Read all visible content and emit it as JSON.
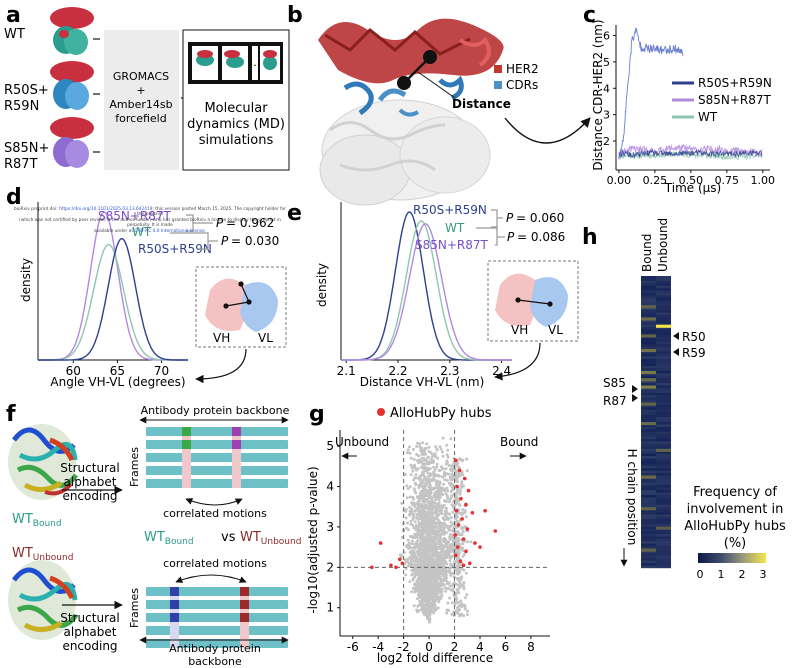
{
  "panel_labels": {
    "a": "a",
    "b": "b",
    "c": "c",
    "d": "d",
    "e": "e",
    "f": "f",
    "g": "g",
    "h": "h"
  },
  "panel_a": {
    "variants": [
      "WT",
      "R50S+",
      "R59N",
      "S85N+",
      "R87T"
    ],
    "method": [
      "GROMACS",
      "+",
      "Amber14sb",
      "forcefield"
    ],
    "result": [
      "Molecular",
      "dynamics (MD)",
      "simulations"
    ],
    "dots": "..."
  },
  "preprint_notice": {
    "line1_prefix": "bioRxiv preprint doi: ",
    "doi": "https://doi.org/10.1101/2025.03.13.642419",
    "line1_suffix": "; this version posted March 15, 2025. The copyright holder for this preprint",
    "line2": "(which was not certified by peer review) is the author/funder, who has granted bioRxiv a license to display the preprint in perpetuity. It is made",
    "line3_prefix": "available under a",
    "license": "CC-BY-NC 4.0 International license",
    "line3_suffix": "."
  },
  "panel_b": {
    "legend": [
      "HER2",
      "CDRs"
    ],
    "distance_label": "Distance"
  },
  "colors": {
    "her2": "#c0392b",
    "cdr": "#4a90c8",
    "wt": "#8ec6b0",
    "r50": "#2f3f8f",
    "s85": "#b388e0",
    "red": "#e53030",
    "gray": "#bbbbbb"
  },
  "panel_d_text": {
    "xlabel": "Angle VH-VL (degrees)",
    "ylabel": "density",
    "p1": "= 0.962",
    "p2": "= 0.030",
    "p": "P"
  },
  "panel_e_text": {
    "xlabel": "Distance VH-VL (nm)",
    "ylabel": "density",
    "p1": "= 0.060",
    "p2": "= 0.086",
    "p": "P"
  },
  "inset": {
    "vh": "VH",
    "vl": "VL"
  },
  "panel_f": {
    "backbone_top": "Antibody protein backbone",
    "backbone_bottom": [
      "Antibody protein",
      "backbone"
    ],
    "frames": "Frames",
    "correlated": "correlated motions",
    "encoding": [
      "Structural",
      "alphabet",
      "encoding"
    ],
    "wt": "WT",
    "bound": "Bound",
    "unbound": "Unbound",
    "vs": "vs"
  },
  "panel_g_text": {
    "legend": "AlloHubPy hubs",
    "xlabel": "log2 fold difference",
    "ylabel": "-log10(adjusted p-value)",
    "unbound": "Unbound",
    "bound": "Bound"
  },
  "panel_h": {
    "columns": [
      "Bound",
      "Unbound"
    ],
    "markers": [
      "R50",
      "R59",
      "S85",
      "R87"
    ],
    "ylabel": "H chain position",
    "colorbar_title": [
      "Frequency of",
      "involvement in",
      "AlloHubPy hubs",
      "(%)"
    ],
    "colorbar_ticks": [
      "0",
      "1",
      "2",
      "3"
    ]
  },
  "chart_data": [
    {
      "id": "c",
      "type": "line",
      "title": "",
      "xlabel": "Time (µs)",
      "ylabel": "Distance CDR-HER2 (nm)",
      "xlim": [
        -0.02,
        1.05
      ],
      "ylim": [
        0.9,
        6.4
      ],
      "xticks": [
        "0.00",
        "0.25",
        "0.50",
        "0.75",
        "1.00"
      ],
      "yticks": [
        "2",
        "3",
        "4",
        "5",
        "6"
      ],
      "series": [
        {
          "name": "R50S+R59N",
          "color": "#2f3f8f"
        },
        {
          "name": "S85N+R87T",
          "color": "#b388e0"
        },
        {
          "name": "WT",
          "color": "#8ec6b0"
        }
      ],
      "approx": {
        "R50S+R59N": {
          "x": [
            0,
            0.03,
            0.06,
            0.1,
            0.2,
            0.35,
            0.5,
            0.75,
            1.0
          ],
          "y": [
            1.4,
            1.55,
            1.5,
            1.45,
            1.55,
            1.5,
            1.55,
            1.5,
            1.55
          ]
        },
        "S85N+R87T": {
          "x": [
            0,
            0.1,
            0.25,
            0.4,
            0.55,
            0.7,
            0.85,
            1.0
          ],
          "y": [
            1.5,
            1.7,
            1.6,
            1.75,
            1.65,
            1.7,
            1.6,
            1.55
          ]
        },
        "WT": {
          "x": [
            0,
            0.2,
            0.4,
            0.6,
            0.8,
            1.0
          ],
          "y": [
            1.45,
            1.45,
            1.5,
            1.45,
            1.4,
            1.45
          ]
        },
        "R50S+R59N_excursion": {
          "x": [
            0,
            0.03,
            0.06,
            0.09,
            0.12,
            0.15,
            0.2,
            0.3,
            0.4,
            0.45
          ],
          "y": [
            1.4,
            2.0,
            4.0,
            5.8,
            6.2,
            5.6,
            5.5,
            5.45,
            5.5,
            5.3
          ]
        }
      }
    },
    {
      "id": "d",
      "type": "line",
      "xlabel": "Angle VH-VL (degrees)",
      "ylabel": "density",
      "xlim": [
        56,
        73
      ],
      "xticks": [
        "60",
        "65",
        "70"
      ],
      "series": [
        {
          "name": "S85N+R87T",
          "color": "#b388e0",
          "mean": 63.5,
          "sd": 1.55,
          "peak": 1.0
        },
        {
          "name": "WT",
          "color": "#8ec6b0",
          "mean": 64.0,
          "sd": 1.7,
          "peak": 0.78
        },
        {
          "name": "R50S+R59N",
          "color": "#2f3f8f",
          "mean": 65.5,
          "sd": 1.55,
          "peak": 0.82
        }
      ],
      "annotations": [
        {
          "pair": [
            "S85N+R87T",
            "WT"
          ],
          "text": "P = 0.962"
        },
        {
          "pair": [
            "WT",
            "R50S+R59N"
          ],
          "text": "P = 0.030"
        }
      ]
    },
    {
      "id": "e",
      "type": "line",
      "xlabel": "Distance VH-VL (nm)",
      "ylabel": "density",
      "xlim": [
        2.09,
        2.42
      ],
      "xticks": [
        "2.1",
        "2.2",
        "2.3",
        "2.4"
      ],
      "series": [
        {
          "name": "R50S+R59N",
          "color": "#2f3f8f",
          "mean": 2.222,
          "sd": 0.027,
          "peak": 1.0
        },
        {
          "name": "WT",
          "color": "#8ec6b0",
          "mean": 2.245,
          "sd": 0.029,
          "peak": 0.94
        },
        {
          "name": "S85N+R87T",
          "color": "#b388e0",
          "mean": 2.253,
          "sd": 0.031,
          "peak": 0.92
        }
      ],
      "annotations": [
        {
          "pair": [
            "R50S+R59N",
            "WT"
          ],
          "text": "P = 0.060"
        },
        {
          "pair": [
            "WT",
            "S85N+R87T"
          ],
          "text": "P = 0.086"
        }
      ]
    },
    {
      "id": "g",
      "type": "scatter",
      "xlabel": "log2 fold difference",
      "ylabel": "-log10(adjusted p-value)",
      "xlim": [
        -7,
        9.5
      ],
      "ylim": [
        0.3,
        5.4
      ],
      "xticks": [
        "-6",
        "-4",
        "-2",
        "0",
        "2",
        "4",
        "6",
        "8"
      ],
      "yticks": [
        "1",
        "2",
        "3",
        "4",
        "5"
      ],
      "thresholds": {
        "x": [
          -2,
          2
        ],
        "y": 2
      },
      "legend": [
        "AlloHubPy hubs"
      ],
      "hub_points": [
        [
          2.1,
          4.65
        ],
        [
          2.4,
          4.4
        ],
        [
          2.8,
          4.2
        ],
        [
          2.2,
          4.0
        ],
        [
          3.1,
          3.9
        ],
        [
          2.5,
          3.7
        ],
        [
          2.9,
          3.55
        ],
        [
          2.15,
          3.4
        ],
        [
          3.4,
          3.35
        ],
        [
          2.6,
          3.2
        ],
        [
          2.3,
          3.05
        ],
        [
          3.0,
          2.95
        ],
        [
          2.05,
          2.8
        ],
        [
          2.7,
          2.7
        ],
        [
          3.6,
          2.6
        ],
        [
          2.25,
          2.5
        ],
        [
          2.9,
          2.4
        ],
        [
          2.1,
          2.3
        ],
        [
          4.4,
          3.4
        ],
        [
          5.2,
          2.9
        ],
        [
          4.0,
          2.5
        ],
        [
          2.45,
          2.15
        ],
        [
          3.2,
          2.1
        ],
        [
          2.7,
          2.05
        ],
        [
          -2.3,
          2.2
        ],
        [
          -3.0,
          2.05
        ],
        [
          -2.6,
          2.0
        ],
        [
          -3.8,
          2.6
        ],
        [
          -2.1,
          2.1
        ],
        [
          -4.5,
          2.0
        ]
      ]
    },
    {
      "id": "h",
      "type": "heatmap",
      "columns": [
        "Bound",
        "Unbound"
      ],
      "colorbar_range": [
        0,
        3
      ],
      "n_positions": 120,
      "highlighted_rows": [
        {
          "row": 20,
          "col": 1,
          "value": 3.0
        },
        {
          "row": 17,
          "col": 0,
          "value": 0.6
        },
        {
          "row": 12,
          "col": 0,
          "value": 0.5
        },
        {
          "row": 24,
          "col": 0,
          "value": 0.5
        },
        {
          "row": 30,
          "col": 0,
          "value": 0.7
        },
        {
          "row": 39,
          "col": 0,
          "value": 0.8
        },
        {
          "row": 42,
          "col": 0,
          "value": 0.6
        },
        {
          "row": 45,
          "col": 0,
          "value": 0.9
        },
        {
          "row": 52,
          "col": 0,
          "value": 0.5
        },
        {
          "row": 60,
          "col": 0,
          "value": 0.6
        },
        {
          "row": 71,
          "col": 1,
          "value": 0.5
        },
        {
          "row": 82,
          "col": 0,
          "value": 0.6
        },
        {
          "row": 95,
          "col": 0,
          "value": 0.5
        },
        {
          "row": 103,
          "col": 1,
          "value": 0.4
        },
        {
          "row": 112,
          "col": 0,
          "value": 0.5
        }
      ]
    }
  ]
}
